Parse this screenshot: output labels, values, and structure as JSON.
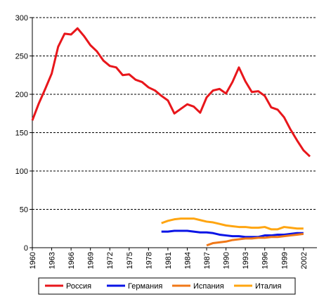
{
  "chart_data": {
    "type": "line",
    "x": [
      1960,
      1961,
      1962,
      1963,
      1964,
      1965,
      1966,
      1967,
      1968,
      1969,
      1970,
      1971,
      1972,
      1973,
      1974,
      1975,
      1976,
      1977,
      1978,
      1979,
      1980,
      1981,
      1982,
      1983,
      1984,
      1985,
      1986,
      1987,
      1988,
      1989,
      1990,
      1991,
      1992,
      1993,
      1994,
      1995,
      1996,
      1997,
      1998,
      1999,
      2000,
      2001,
      2002,
      2003
    ],
    "xlim": [
      1960,
      2003
    ],
    "xticks": [
      1960,
      1963,
      1966,
      1969,
      1972,
      1975,
      1978,
      1981,
      1984,
      1987,
      1990,
      1993,
      1996,
      1999,
      2002
    ],
    "ylim": [
      0,
      300
    ],
    "yticks": [
      0,
      50,
      100,
      150,
      200,
      250,
      300
    ],
    "grid": true,
    "legend": "bottom",
    "series": [
      {
        "name": "Россия",
        "color": "#e8161b",
        "values": [
          166,
          188,
          207,
          227,
          262,
          279,
          278,
          286,
          276,
          264,
          256,
          244,
          237,
          235,
          225,
          226,
          219,
          216,
          209,
          205,
          198,
          192,
          175,
          181,
          187,
          184,
          176,
          196,
          205,
          207,
          201,
          216,
          235,
          217,
          203,
          204,
          198,
          183,
          180,
          170,
          154,
          140,
          127,
          119
        ]
      },
      {
        "name": "Германия",
        "color": "#0a14e6",
        "values": [
          null,
          null,
          null,
          null,
          null,
          null,
          null,
          null,
          null,
          null,
          null,
          null,
          null,
          null,
          null,
          null,
          null,
          null,
          null,
          null,
          21,
          21,
          22,
          22,
          22,
          21,
          20,
          20,
          19,
          17,
          16,
          15,
          15,
          14,
          14,
          14,
          16,
          16,
          17,
          17,
          18,
          19,
          19,
          null
        ]
      },
      {
        "name": "Испания",
        "color": "#f07818",
        "values": [
          null,
          null,
          null,
          null,
          null,
          null,
          null,
          null,
          null,
          null,
          null,
          null,
          null,
          null,
          null,
          null,
          null,
          null,
          null,
          null,
          null,
          null,
          null,
          null,
          null,
          null,
          null,
          3,
          6,
          7,
          8,
          10,
          11,
          12,
          12,
          13,
          13,
          14,
          14,
          15,
          16,
          17,
          18,
          null
        ]
      },
      {
        "name": "Италия",
        "color": "#ffa510",
        "values": [
          null,
          null,
          null,
          null,
          null,
          null,
          null,
          null,
          null,
          null,
          null,
          null,
          null,
          null,
          null,
          null,
          null,
          null,
          null,
          null,
          32,
          35,
          37,
          38,
          38,
          38,
          36,
          34,
          33,
          31,
          29,
          28,
          27,
          27,
          26,
          26,
          27,
          24,
          24,
          27,
          26,
          25,
          25,
          null
        ]
      }
    ]
  }
}
